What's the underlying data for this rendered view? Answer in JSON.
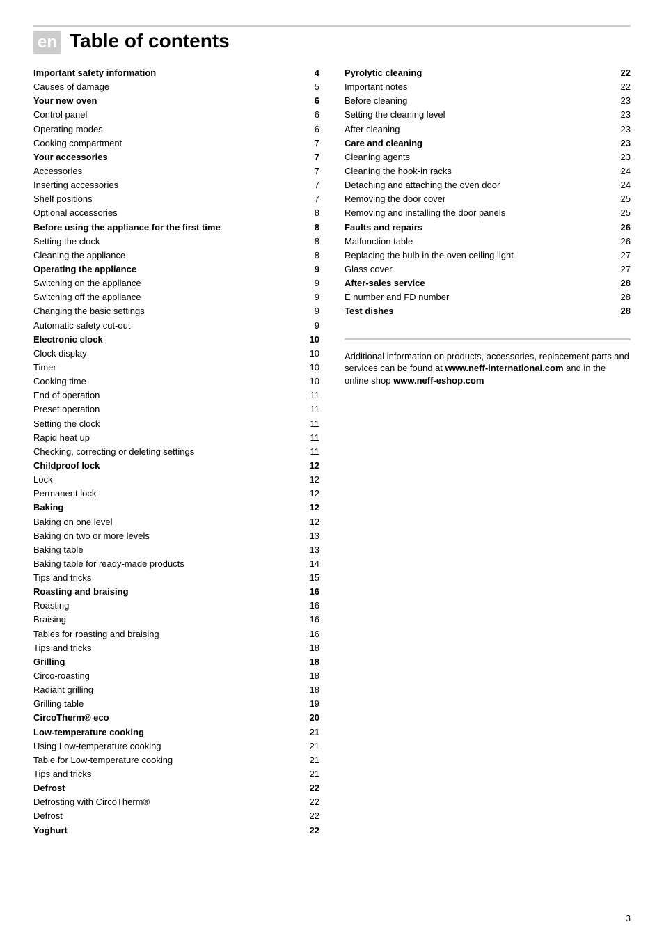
{
  "lang_tag": "en",
  "title": "Table of contents",
  "page_number": "3",
  "info_parts": [
    "Additional information on products, accessories, replacement parts and services can be found at ",
    "www.neff-international.com",
    " and in the online shop ",
    "www.neff-eshop.com"
  ],
  "toc_left": [
    {
      "label": "Important safety information",
      "page": "4",
      "bold": true
    },
    {
      "label": "Causes of damage",
      "page": "5",
      "bold": false
    },
    {
      "label": "Your new oven",
      "page": "6",
      "bold": true
    },
    {
      "label": "Control panel",
      "page": "6",
      "bold": false
    },
    {
      "label": "Operating modes",
      "page": "6",
      "bold": false
    },
    {
      "label": "Cooking compartment",
      "page": "7",
      "bold": false
    },
    {
      "label": "Your accessories",
      "page": "7",
      "bold": true
    },
    {
      "label": "Accessories",
      "page": "7",
      "bold": false
    },
    {
      "label": "Inserting accessories",
      "page": "7",
      "bold": false
    },
    {
      "label": "Shelf positions",
      "page": "7",
      "bold": false
    },
    {
      "label": "Optional accessories",
      "page": "8",
      "bold": false
    },
    {
      "label": "Before using the appliance for the first time",
      "page": "8",
      "bold": true
    },
    {
      "label": "Setting the clock",
      "page": "8",
      "bold": false
    },
    {
      "label": "Cleaning the appliance",
      "page": "8",
      "bold": false
    },
    {
      "label": "Operating the appliance",
      "page": "9",
      "bold": true
    },
    {
      "label": "Switching on the appliance",
      "page": "9",
      "bold": false
    },
    {
      "label": "Switching off the appliance",
      "page": "9",
      "bold": false
    },
    {
      "label": "Changing the basic settings",
      "page": "9",
      "bold": false
    },
    {
      "label": "Automatic safety cut-out",
      "page": "9",
      "bold": false
    },
    {
      "label": "Electronic clock",
      "page": "10",
      "bold": true
    },
    {
      "label": "Clock display",
      "page": "10",
      "bold": false
    },
    {
      "label": "Timer",
      "page": "10",
      "bold": false
    },
    {
      "label": "Cooking time",
      "page": "10",
      "bold": false
    },
    {
      "label": "End of operation",
      "page": "11",
      "bold": false
    },
    {
      "label": "Preset operation",
      "page": "11",
      "bold": false
    },
    {
      "label": "Setting the clock",
      "page": "11",
      "bold": false
    },
    {
      "label": "Rapid heat up",
      "page": "11",
      "bold": false
    },
    {
      "label": "Checking, correcting or deleting settings",
      "page": "11",
      "bold": false
    },
    {
      "label": "Childproof lock",
      "page": "12",
      "bold": true
    },
    {
      "label": "Lock",
      "page": "12",
      "bold": false
    },
    {
      "label": "Permanent lock",
      "page": "12",
      "bold": false
    },
    {
      "label": "Baking",
      "page": "12",
      "bold": true
    },
    {
      "label": "Baking on one level",
      "page": "12",
      "bold": false
    },
    {
      "label": "Baking on two or more levels",
      "page": "13",
      "bold": false
    },
    {
      "label": "Baking table",
      "page": "13",
      "bold": false
    },
    {
      "label": "Baking table for ready-made products",
      "page": "14",
      "bold": false
    },
    {
      "label": "Tips and tricks",
      "page": "15",
      "bold": false
    },
    {
      "label": "Roasting and braising",
      "page": "16",
      "bold": true
    },
    {
      "label": "Roasting",
      "page": "16",
      "bold": false
    },
    {
      "label": "Braising",
      "page": "16",
      "bold": false
    },
    {
      "label": "Tables for roasting and braising",
      "page": "16",
      "bold": false
    },
    {
      "label": "Tips and tricks",
      "page": "18",
      "bold": false
    },
    {
      "label": "Grilling",
      "page": "18",
      "bold": true
    },
    {
      "label": "Circo-roasting",
      "page": "18",
      "bold": false
    },
    {
      "label": "Radiant grilling",
      "page": "18",
      "bold": false
    },
    {
      "label": "Grilling table",
      "page": "19",
      "bold": false
    },
    {
      "label": "CircoTherm® eco",
      "page": "20",
      "bold": true
    },
    {
      "label": "Low-temperature cooking",
      "page": "21",
      "bold": true
    },
    {
      "label": "Using Low-temperature cooking",
      "page": "21",
      "bold": false
    },
    {
      "label": "Table for Low-temperature cooking",
      "page": "21",
      "bold": false
    },
    {
      "label": "Tips and tricks",
      "page": "21",
      "bold": false
    },
    {
      "label": "Defrost",
      "page": "22",
      "bold": true
    },
    {
      "label": "Defrosting with CircoTherm®",
      "page": "22",
      "bold": false
    },
    {
      "label": "Defrost",
      "page": "22",
      "bold": false
    },
    {
      "label": "Yoghurt",
      "page": "22",
      "bold": true
    }
  ],
  "toc_right": [
    {
      "label": "Pyrolytic cleaning",
      "page": "22",
      "bold": true
    },
    {
      "label": "Important notes",
      "page": "22",
      "bold": false
    },
    {
      "label": "Before cleaning",
      "page": "23",
      "bold": false
    },
    {
      "label": "Setting the cleaning level",
      "page": "23",
      "bold": false
    },
    {
      "label": "After cleaning",
      "page": "23",
      "bold": false
    },
    {
      "label": "Care and cleaning",
      "page": "23",
      "bold": true
    },
    {
      "label": "Cleaning agents",
      "page": "23",
      "bold": false
    },
    {
      "label": "Cleaning the hook-in racks",
      "page": "24",
      "bold": false
    },
    {
      "label": "Detaching and attaching the oven door",
      "page": "24",
      "bold": false
    },
    {
      "label": "Removing the door cover",
      "page": "25",
      "bold": false
    },
    {
      "label": "Removing and installing the door panels",
      "page": "25",
      "bold": false
    },
    {
      "label": "Faults and repairs",
      "page": "26",
      "bold": true
    },
    {
      "label": "Malfunction table",
      "page": "26",
      "bold": false
    },
    {
      "label": "Replacing the bulb in the oven ceiling light",
      "page": "27",
      "bold": false
    },
    {
      "label": "Glass cover",
      "page": "27",
      "bold": false
    },
    {
      "label": "After-sales service",
      "page": "28",
      "bold": true
    },
    {
      "label": "E number and FD number",
      "page": "28",
      "bold": false
    },
    {
      "label": "Test dishes",
      "page": "28",
      "bold": true
    }
  ]
}
